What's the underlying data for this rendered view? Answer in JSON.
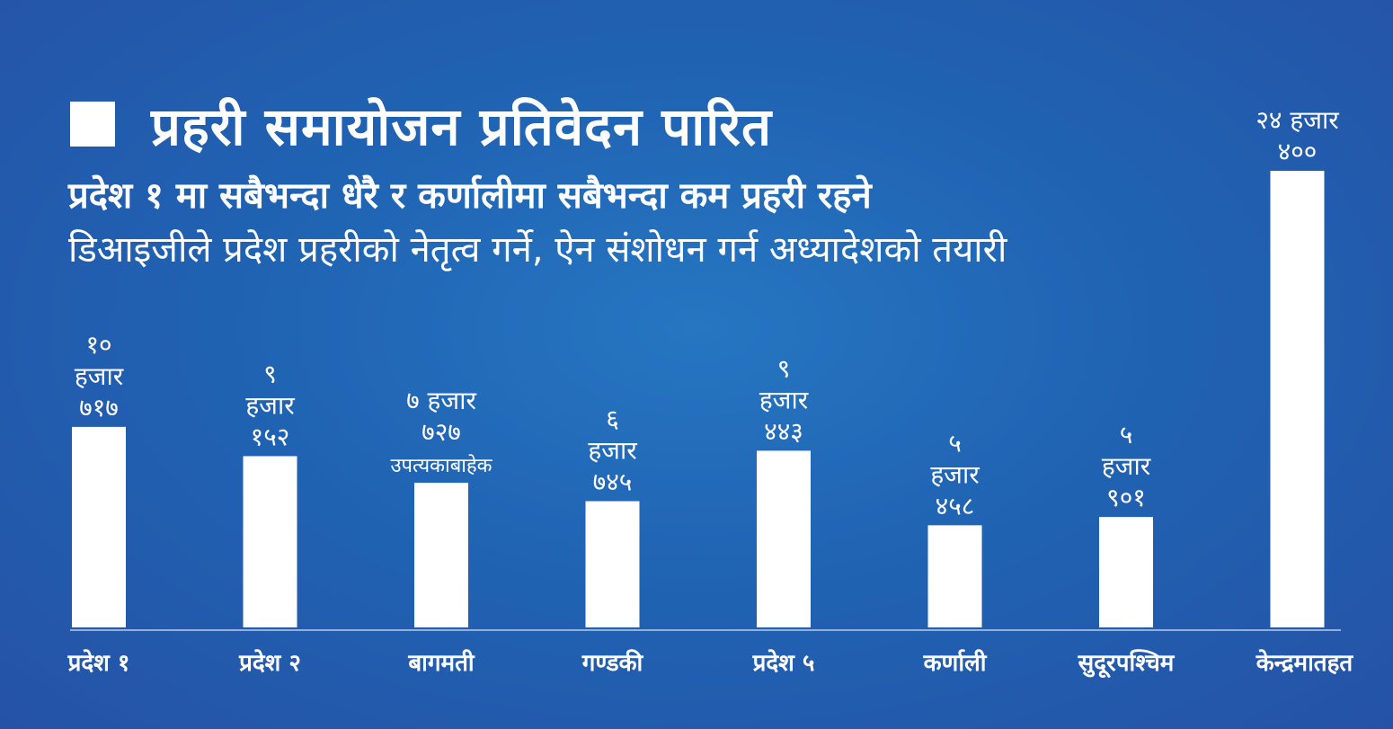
{
  "title": "प्रहरी समायोजन प्रतिवेदन पारित",
  "subtitle": "प्रदेश १ मा सबैभन्दा धेरै र कर्णालीमा सबैभन्दा कम प्रहरी रहने",
  "subtitle2": "डिआइजीले प्रदेश प्रहरीको नेतृत्व गर्ने, ऐन संशोधन गर्न अध्यादेशको तयारी",
  "colors": {
    "background": "#2167b6",
    "bars": "#ffffff",
    "text": "#ffffff"
  },
  "chart_data": {
    "type": "bar",
    "categories": [
      "प्रदेश १",
      "प्रदेश २",
      "बागमती",
      "गण्डकी",
      "प्रदेश ५",
      "कर्णाली",
      "सुदूरपश्चिम",
      "केन्द्रमातहत"
    ],
    "values": [
      10717,
      9152,
      7727,
      6745,
      9443,
      5458,
      5901,
      24400
    ],
    "data_labels": [
      [
        "१०",
        "हजार",
        "७१७"
      ],
      [
        "९",
        "हजार",
        "१५२"
      ],
      [
        "७ हजार",
        "७२७",
        "उपत्यकाबाहेक"
      ],
      [
        "६",
        "हजार",
        "७४५"
      ],
      [
        "९",
        "हजार",
        "४४३"
      ],
      [
        "५",
        "हजार",
        "४५८"
      ],
      [
        "५",
        "हजार",
        "९०१"
      ],
      [
        "२४ हजार",
        "४००"
      ]
    ],
    "ylim": [
      0,
      24400
    ],
    "grid": false,
    "xlabel": "",
    "ylabel": ""
  }
}
